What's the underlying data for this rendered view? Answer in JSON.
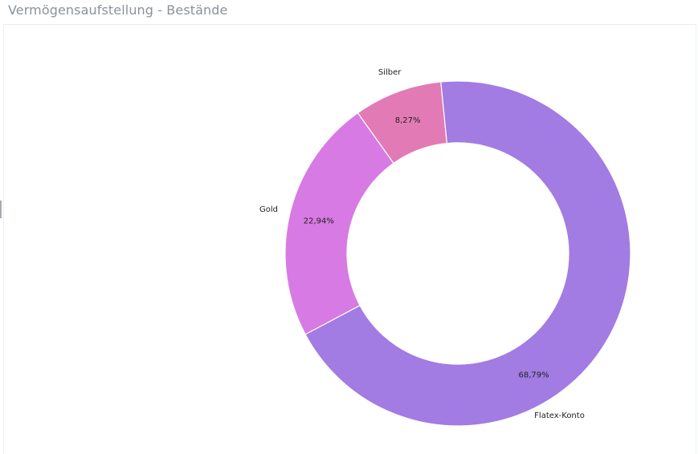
{
  "panel": {
    "title": "Vermögensaufstellung - Bestände"
  },
  "chart_data": {
    "type": "pie",
    "donut": true,
    "title": "",
    "slices": [
      {
        "label": "Gold",
        "value": 22.94,
        "value_label": "22,94%",
        "color": "#d77ae3"
      },
      {
        "label": "Silber",
        "value": 8.27,
        "value_label": "8,27%",
        "color": "#e27bb5"
      },
      {
        "label": "Flatex-Konto",
        "value": 68.79,
        "value_label": "68,79%",
        "color": "#a27be3"
      }
    ]
  }
}
